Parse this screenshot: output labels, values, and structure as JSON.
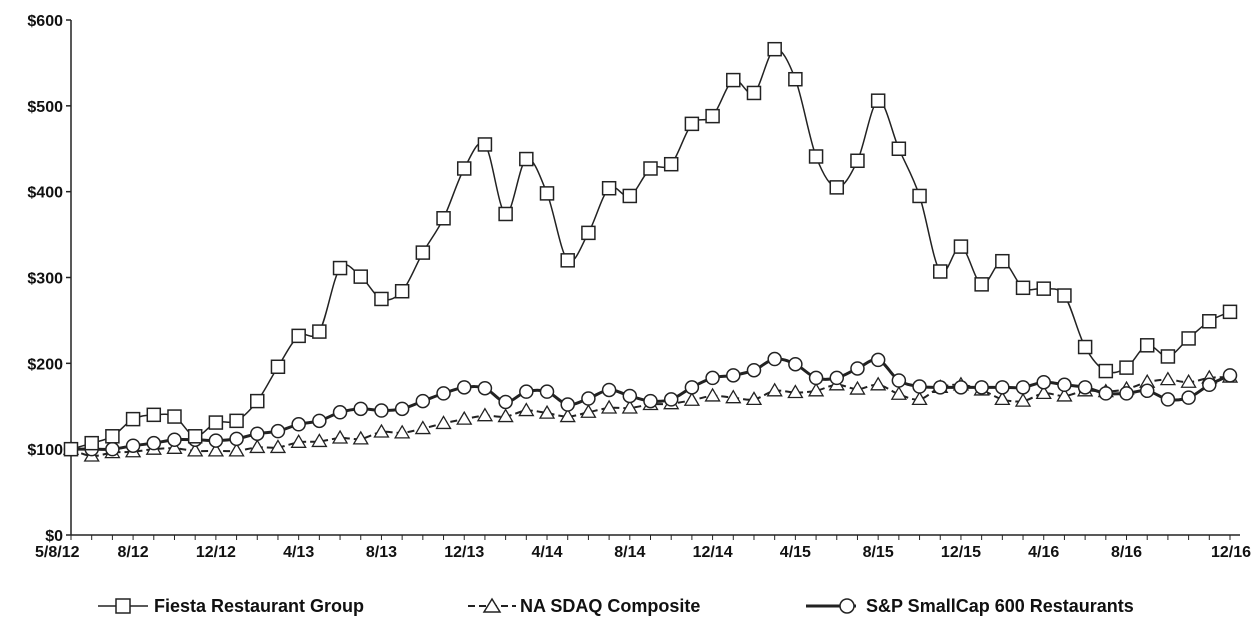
{
  "chart_data": {
    "type": "line",
    "title": "",
    "xlabel": "",
    "ylabel": "",
    "ylim": [
      0,
      600
    ],
    "grid": false,
    "legend_position": "bottom",
    "y_ticks": [
      "$0",
      "$100",
      "$200",
      "$300",
      "$400",
      "$500",
      "$600"
    ],
    "x_ticks": [
      "5/8/12",
      "8/12",
      "12/12",
      "4/13",
      "8/13",
      "12/13",
      "4/14",
      "8/14",
      "12/14",
      "4/15",
      "8/15",
      "12/15",
      "4/16",
      "8/16",
      "12/16"
    ],
    "series": [
      {
        "name": "Fiesta Restaurant Group",
        "marker": "square",
        "line": "solid",
        "values": [
          100,
          107,
          115,
          135,
          140,
          138,
          115,
          131,
          133,
          156,
          196,
          232,
          237,
          311,
          301,
          275,
          284,
          329,
          369,
          427,
          455,
          374,
          438,
          398,
          320,
          352,
          404,
          395,
          427,
          432,
          479,
          488,
          530,
          515,
          566,
          531,
          441,
          405,
          436,
          506,
          450,
          395,
          307,
          336,
          292,
          319,
          288,
          287,
          279,
          219,
          191,
          195,
          221,
          208,
          229,
          249,
          260
        ]
      },
      {
        "name": "NA SDAQ Composite",
        "marker": "triangle",
        "line": "dashed",
        "values": [
          100,
          92,
          96,
          97,
          100,
          101,
          98,
          98,
          98,
          102,
          102,
          108,
          109,
          113,
          112,
          120,
          119,
          124,
          130,
          135,
          139,
          138,
          145,
          142,
          138,
          143,
          148,
          148,
          152,
          153,
          157,
          162,
          160,
          158,
          168,
          166,
          168,
          175,
          170,
          175,
          164,
          158,
          172,
          175,
          169,
          158,
          156,
          165,
          162,
          168,
          167,
          170,
          178,
          181,
          178,
          183,
          184
        ]
      },
      {
        "name": "S&P SmallCap 600 Restaurants",
        "marker": "circle",
        "line": "solid",
        "values": [
          100,
          100,
          100,
          104,
          107,
          111,
          111,
          110,
          112,
          118,
          121,
          129,
          133,
          143,
          147,
          145,
          147,
          156,
          165,
          172,
          171,
          155,
          167,
          167,
          152,
          159,
          169,
          162,
          156,
          158,
          172,
          183,
          186,
          192,
          205,
          199,
          183,
          183,
          194,
          204,
          180,
          173,
          172,
          172,
          172,
          172,
          172,
          178,
          175,
          172,
          165,
          165,
          168,
          158,
          160,
          175,
          186
        ]
      }
    ]
  }
}
